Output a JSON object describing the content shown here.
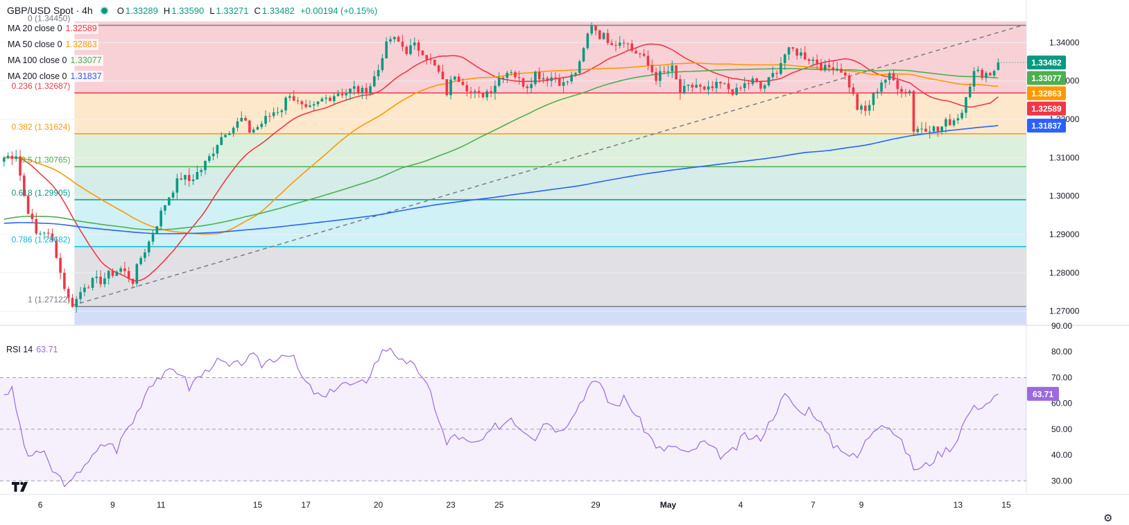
{
  "header": {
    "symbol": "GBP/USD Spot · 4h",
    "open_label": "O",
    "open": "1.33289",
    "high_label": "H",
    "high": "1.33590",
    "low_label": "L",
    "low": "1.33271",
    "close_label": "C",
    "close": "1.33482",
    "change": "+0.00194 (+0.15%)"
  },
  "indicators": [
    {
      "name": "MA 20 close 0",
      "value": "1.32589",
      "color": "#f23645"
    },
    {
      "name": "MA 50 close 0",
      "value": "1.32863",
      "color": "#ff9800"
    },
    {
      "name": "MA 100 close 0",
      "value": "1.33077",
      "color": "#4caf50"
    },
    {
      "name": "MA 200 close 0",
      "value": "1.31837",
      "color": "#2962ff"
    }
  ],
  "rsi": {
    "name": "RSI 14",
    "value": "63.71",
    "color": "#9c6ade"
  },
  "colors": {
    "up": "#089981",
    "down": "#f23645",
    "rsi": "#9c6ade"
  },
  "icons": {
    "logo": "tradingview-logo-icon",
    "settings": "gear-icon"
  },
  "chart_data": {
    "type": "candlestick",
    "price_axis": {
      "ylim": [
        1.2665,
        1.3455
      ],
      "ticks": [
        "1.34000",
        "1.33000",
        "1.32000",
        "1.31000",
        "1.30000",
        "1.29000",
        "1.28000",
        "1.27000"
      ]
    },
    "x_axis_ticks": [
      {
        "label": "6",
        "x": 9
      },
      {
        "label": "9",
        "x": 27
      },
      {
        "label": "11",
        "x": 39
      },
      {
        "label": "15",
        "x": 63
      },
      {
        "label": "17",
        "x": 75
      },
      {
        "label": "20",
        "x": 93
      },
      {
        "label": "23",
        "x": 111
      },
      {
        "label": "25",
        "x": 123
      },
      {
        "label": "29",
        "x": 147
      },
      {
        "label": "May",
        "x": 165
      },
      {
        "label": "4",
        "x": 183
      },
      {
        "label": "7",
        "x": 201
      },
      {
        "label": "9",
        "x": 213
      },
      {
        "label": "13",
        "x": 237
      },
      {
        "label": "15",
        "x": 249
      }
    ],
    "x_range": [
      -1,
      254
    ],
    "fibonacci": [
      {
        "label": "0 (1.34450)",
        "level": 1.3445,
        "line": "#787b86",
        "fill": "#f7c9cf"
      },
      {
        "label": "0.236 (1.32687)",
        "level": 1.32687,
        "line": "#f23645",
        "fill": "#fde4c3"
      },
      {
        "label": "0.382 (1.31624)",
        "level": 1.31624,
        "line": "#ff9800",
        "fill": "#d7ecd7"
      },
      {
        "label": "0.5 (1.30765)",
        "level": 1.30765,
        "line": "#4caf50",
        "fill": "#cfe9e4"
      },
      {
        "label": "0.618 (1.29905)",
        "level": 1.29905,
        "line": "#089981",
        "fill": "#c8eef3"
      },
      {
        "label": "0.786 (1.28682)",
        "level": 1.28682,
        "line": "#00bcd4",
        "fill": "#dcdce0"
      },
      {
        "label": "1 (1.27122)",
        "level": 1.27122,
        "line": "#787b86",
        "fill": "#cdd7f6"
      }
    ],
    "fib_x_start": 17.5,
    "trendline": {
      "from": [
        17,
        1.2715
      ],
      "to": [
        253,
        1.3445
      ]
    },
    "price_labels": [
      {
        "value": "1.33482",
        "level": 1.33482,
        "color": "#089981"
      },
      {
        "value": "1.33077",
        "level": 1.33077,
        "color": "#4caf50"
      },
      {
        "value": "1.32863",
        "level": 1.32863,
        "color": "#ff9800"
      },
      {
        "value": "1.32589",
        "level": 1.32589,
        "color": "#f23645"
      },
      {
        "value": "1.31837",
        "level": 1.31837,
        "color": "#2962ff"
      }
    ],
    "path_anchors": [
      [
        0,
        1.31
      ],
      [
        3,
        1.311
      ],
      [
        5,
        1.3
      ],
      [
        7,
        1.293
      ],
      [
        8,
        1.29
      ],
      [
        10,
        1.291
      ],
      [
        12,
        1.288
      ],
      [
        13,
        1.285
      ],
      [
        14,
        1.28
      ],
      [
        16,
        1.273
      ],
      [
        17,
        1.272
      ],
      [
        18,
        1.273
      ],
      [
        20,
        1.277
      ],
      [
        24,
        1.278
      ],
      [
        27,
        1.28
      ],
      [
        29,
        1.281
      ],
      [
        32,
        1.278
      ],
      [
        34,
        1.284
      ],
      [
        36,
        1.288
      ],
      [
        38,
        1.293
      ],
      [
        40,
        1.298
      ],
      [
        42,
        1.302
      ],
      [
        44,
        1.305
      ],
      [
        46,
        1.304
      ],
      [
        49,
        1.307
      ],
      [
        51,
        1.31
      ],
      [
        53,
        1.314
      ],
      [
        55,
        1.317
      ],
      [
        57,
        1.318
      ],
      [
        59,
        1.32
      ],
      [
        61,
        1.317
      ],
      [
        63,
        1.318
      ],
      [
        65,
        1.32
      ],
      [
        67,
        1.322
      ],
      [
        69,
        1.323
      ],
      [
        71,
        1.327
      ],
      [
        73,
        1.324
      ],
      [
        75,
        1.322
      ],
      [
        77,
        1.323
      ],
      [
        79,
        1.325
      ],
      [
        81,
        1.326
      ],
      [
        83,
        1.327
      ],
      [
        85,
        1.327
      ],
      [
        87,
        1.328
      ],
      [
        89,
        1.327
      ],
      [
        91,
        1.329
      ],
      [
        93,
        1.333
      ],
      [
        94,
        1.337
      ],
      [
        96,
        1.341
      ],
      [
        98,
        1.34
      ],
      [
        100,
        1.338
      ],
      [
        102,
        1.339
      ],
      [
        104,
        1.338
      ],
      [
        106,
        1.335
      ],
      [
        108,
        1.332
      ],
      [
        110,
        1.327
      ],
      [
        112,
        1.332
      ],
      [
        114,
        1.33
      ],
      [
        116,
        1.327
      ],
      [
        118,
        1.326
      ],
      [
        121,
        1.328
      ],
      [
        124,
        1.332
      ],
      [
        126,
        1.333
      ],
      [
        128,
        1.33
      ],
      [
        130,
        1.329
      ],
      [
        132,
        1.332
      ],
      [
        134,
        1.331
      ],
      [
        137,
        1.331
      ],
      [
        139,
        1.329
      ],
      [
        141,
        1.331
      ],
      [
        143,
        1.334
      ],
      [
        145,
        1.342
      ],
      [
        146,
        1.345
      ],
      [
        148,
        1.342
      ],
      [
        150,
        1.341
      ],
      [
        152,
        1.34
      ],
      [
        154,
        1.341
      ],
      [
        156,
        1.338
      ],
      [
        158,
        1.337
      ],
      [
        160,
        1.334
      ],
      [
        162,
        1.331
      ],
      [
        164,
        1.332
      ],
      [
        166,
        1.333
      ],
      [
        168,
        1.327
      ],
      [
        170,
        1.328
      ],
      [
        172,
        1.329
      ],
      [
        174,
        1.327
      ],
      [
        176,
        1.328
      ],
      [
        178,
        1.329
      ],
      [
        180,
        1.328
      ],
      [
        182,
        1.327
      ],
      [
        184,
        1.329
      ],
      [
        186,
        1.33
      ],
      [
        188,
        1.328
      ],
      [
        190,
        1.33
      ],
      [
        192,
        1.333
      ],
      [
        194,
        1.337
      ],
      [
        196,
        1.338
      ],
      [
        198,
        1.337
      ],
      [
        200,
        1.336
      ],
      [
        202,
        1.335
      ],
      [
        204,
        1.333
      ],
      [
        206,
        1.334
      ],
      [
        208,
        1.333
      ],
      [
        210,
        1.329
      ],
      [
        212,
        1.323
      ],
      [
        214,
        1.322
      ],
      [
        216,
        1.326
      ],
      [
        218,
        1.33
      ],
      [
        220,
        1.331
      ],
      [
        222,
        1.329
      ],
      [
        224,
        1.327
      ],
      [
        225,
        1.328
      ],
      [
        226,
        1.317
      ],
      [
        228,
        1.318
      ],
      [
        230,
        1.318
      ],
      [
        232,
        1.317
      ],
      [
        234,
        1.319
      ],
      [
        236,
        1.32
      ],
      [
        238,
        1.322
      ],
      [
        239,
        1.327
      ],
      [
        241,
        1.332
      ],
      [
        243,
        1.332
      ],
      [
        245,
        1.332
      ],
      [
        246,
        1.333
      ],
      [
        247,
        1.3348
      ]
    ],
    "rsi_axis": {
      "ylim": [
        25,
        90
      ],
      "ticks": [
        "90.00",
        "80.00",
        "70.00",
        "60.00",
        "50.00",
        "40.00",
        "30.00"
      ],
      "bands": [
        30,
        50,
        70
      ]
    },
    "rsi_anchors": [
      [
        0,
        64
      ],
      [
        2,
        65
      ],
      [
        4,
        51
      ],
      [
        6,
        38
      ],
      [
        8,
        42
      ],
      [
        10,
        40
      ],
      [
        12,
        34
      ],
      [
        14,
        31
      ],
      [
        16,
        28
      ],
      [
        18,
        32
      ],
      [
        20,
        37
      ],
      [
        22,
        39
      ],
      [
        24,
        43
      ],
      [
        26,
        45
      ],
      [
        28,
        42
      ],
      [
        30,
        49
      ],
      [
        32,
        53
      ],
      [
        34,
        60
      ],
      [
        36,
        67
      ],
      [
        38,
        70
      ],
      [
        40,
        71
      ],
      [
        42,
        73
      ],
      [
        44,
        72
      ],
      [
        46,
        66
      ],
      [
        48,
        70
      ],
      [
        50,
        72
      ],
      [
        52,
        76
      ],
      [
        54,
        76
      ],
      [
        56,
        74
      ],
      [
        58,
        75
      ],
      [
        60,
        77
      ],
      [
        62,
        78
      ],
      [
        64,
        75
      ],
      [
        66,
        77
      ],
      [
        68,
        78
      ],
      [
        70,
        80
      ],
      [
        72,
        77
      ],
      [
        74,
        70
      ],
      [
        76,
        66
      ],
      [
        78,
        63
      ],
      [
        80,
        62
      ],
      [
        82,
        66
      ],
      [
        84,
        68
      ],
      [
        86,
        67
      ],
      [
        88,
        67
      ],
      [
        90,
        69
      ],
      [
        92,
        75
      ],
      [
        94,
        80
      ],
      [
        96,
        82
      ],
      [
        98,
        78
      ],
      [
        100,
        74
      ],
      [
        102,
        76
      ],
      [
        104,
        69
      ],
      [
        106,
        64
      ],
      [
        108,
        54
      ],
      [
        110,
        44
      ],
      [
        112,
        48
      ],
      [
        114,
        46
      ],
      [
        116,
        44
      ],
      [
        118,
        45
      ],
      [
        120,
        47
      ],
      [
        122,
        51
      ],
      [
        124,
        52
      ],
      [
        126,
        55
      ],
      [
        128,
        51
      ],
      [
        130,
        49
      ],
      [
        132,
        47
      ],
      [
        134,
        53
      ],
      [
        136,
        52
      ],
      [
        138,
        49
      ],
      [
        140,
        53
      ],
      [
        142,
        58
      ],
      [
        144,
        62
      ],
      [
        146,
        70
      ],
      [
        148,
        67
      ],
      [
        150,
        61
      ],
      [
        152,
        59
      ],
      [
        154,
        62
      ],
      [
        156,
        58
      ],
      [
        158,
        53
      ],
      [
        160,
        48
      ],
      [
        162,
        44
      ],
      [
        164,
        41
      ],
      [
        166,
        44
      ],
      [
        168,
        42
      ],
      [
        170,
        40
      ],
      [
        172,
        43
      ],
      [
        174,
        45
      ],
      [
        176,
        42
      ],
      [
        178,
        40
      ],
      [
        180,
        40
      ],
      [
        182,
        43
      ],
      [
        184,
        48
      ],
      [
        186,
        46
      ],
      [
        188,
        47
      ],
      [
        190,
        52
      ],
      [
        192,
        58
      ],
      [
        194,
        63
      ],
      [
        196,
        60
      ],
      [
        198,
        56
      ],
      [
        200,
        58
      ],
      [
        202,
        55
      ],
      [
        204,
        49
      ],
      [
        206,
        44
      ],
      [
        208,
        43
      ],
      [
        210,
        40
      ],
      [
        212,
        39
      ],
      [
        214,
        45
      ],
      [
        216,
        50
      ],
      [
        218,
        53
      ],
      [
        220,
        51
      ],
      [
        222,
        47
      ],
      [
        224,
        42
      ],
      [
        226,
        35
      ],
      [
        228,
        35
      ],
      [
        230,
        37
      ],
      [
        232,
        40
      ],
      [
        234,
        42
      ],
      [
        236,
        44
      ],
      [
        238,
        51
      ],
      [
        240,
        57
      ],
      [
        242,
        59
      ],
      [
        244,
        60
      ],
      [
        246,
        62
      ],
      [
        247,
        63.7
      ]
    ]
  }
}
